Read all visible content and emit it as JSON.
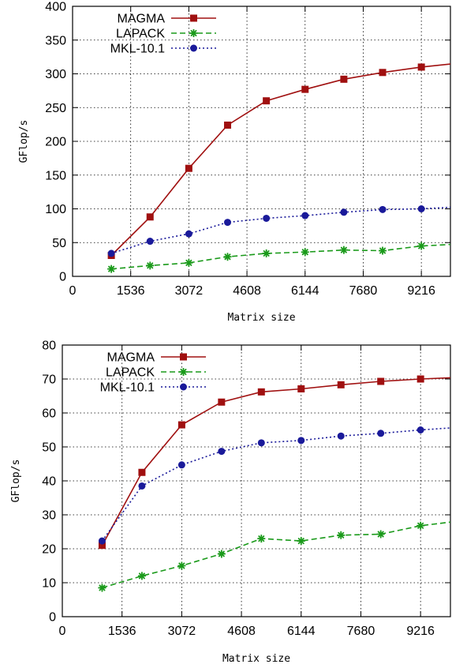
{
  "chart_data": [
    {
      "type": "line",
      "title": "",
      "xlabel": "Matrix size",
      "ylabel": "GFlop/s",
      "xlim": [
        0,
        9984
      ],
      "ylim": [
        0,
        400
      ],
      "xticks": [
        0,
        1536,
        3072,
        4608,
        6144,
        7680,
        9216
      ],
      "yticks": [
        0,
        50,
        100,
        150,
        200,
        250,
        300,
        350,
        400
      ],
      "grid": true,
      "legend_position": "top-left",
      "x": [
        1024,
        2048,
        3072,
        4096,
        5120,
        6144,
        7168,
        8192,
        9216,
        10240
      ],
      "series": [
        {
          "name": "MAGMA",
          "color": "#a01010",
          "marker": "square",
          "dash": "solid",
          "values": [
            31,
            88,
            160,
            224,
            260,
            277,
            292,
            302,
            310,
            316
          ]
        },
        {
          "name": "LAPACK",
          "color": "#1a9a1a",
          "marker": "star",
          "dash": "dashed",
          "values": [
            11,
            16,
            20,
            29,
            34,
            36,
            39,
            38,
            45,
            48
          ]
        },
        {
          "name": "MKL-10.1",
          "color": "#1a1a9a",
          "marker": "circle",
          "dash": "dotted",
          "values": [
            34,
            52,
            63,
            80,
            86,
            90,
            95,
            99,
            100,
            103
          ]
        }
      ]
    },
    {
      "type": "line",
      "title": "",
      "xlabel": "Matrix size",
      "ylabel": "GFlop/s",
      "xlim": [
        0,
        9984
      ],
      "ylim": [
        0,
        80
      ],
      "xticks": [
        0,
        1536,
        3072,
        4608,
        6144,
        7680,
        9216
      ],
      "yticks": [
        0,
        10,
        20,
        30,
        40,
        50,
        60,
        70,
        80
      ],
      "grid": true,
      "legend_position": "top-left",
      "x": [
        1024,
        2048,
        3072,
        4096,
        5120,
        6144,
        7168,
        8192,
        9216,
        10240
      ],
      "series": [
        {
          "name": "MAGMA",
          "color": "#a01010",
          "marker": "square",
          "dash": "solid",
          "values": [
            21,
            42.5,
            56.5,
            63.2,
            66.2,
            67.1,
            68.3,
            69.3,
            70,
            70.5
          ]
        },
        {
          "name": "LAPACK",
          "color": "#1a9a1a",
          "marker": "star",
          "dash": "dashed",
          "values": [
            8.5,
            12,
            15,
            18.5,
            23,
            22.3,
            24,
            24.3,
            26.8,
            28.2
          ]
        },
        {
          "name": "MKL-10.1",
          "color": "#1a1a9a",
          "marker": "circle",
          "dash": "dotted",
          "values": [
            22.3,
            38.5,
            44.7,
            48.7,
            51.2,
            51.9,
            53.2,
            54,
            55,
            55.8
          ]
        }
      ]
    }
  ]
}
